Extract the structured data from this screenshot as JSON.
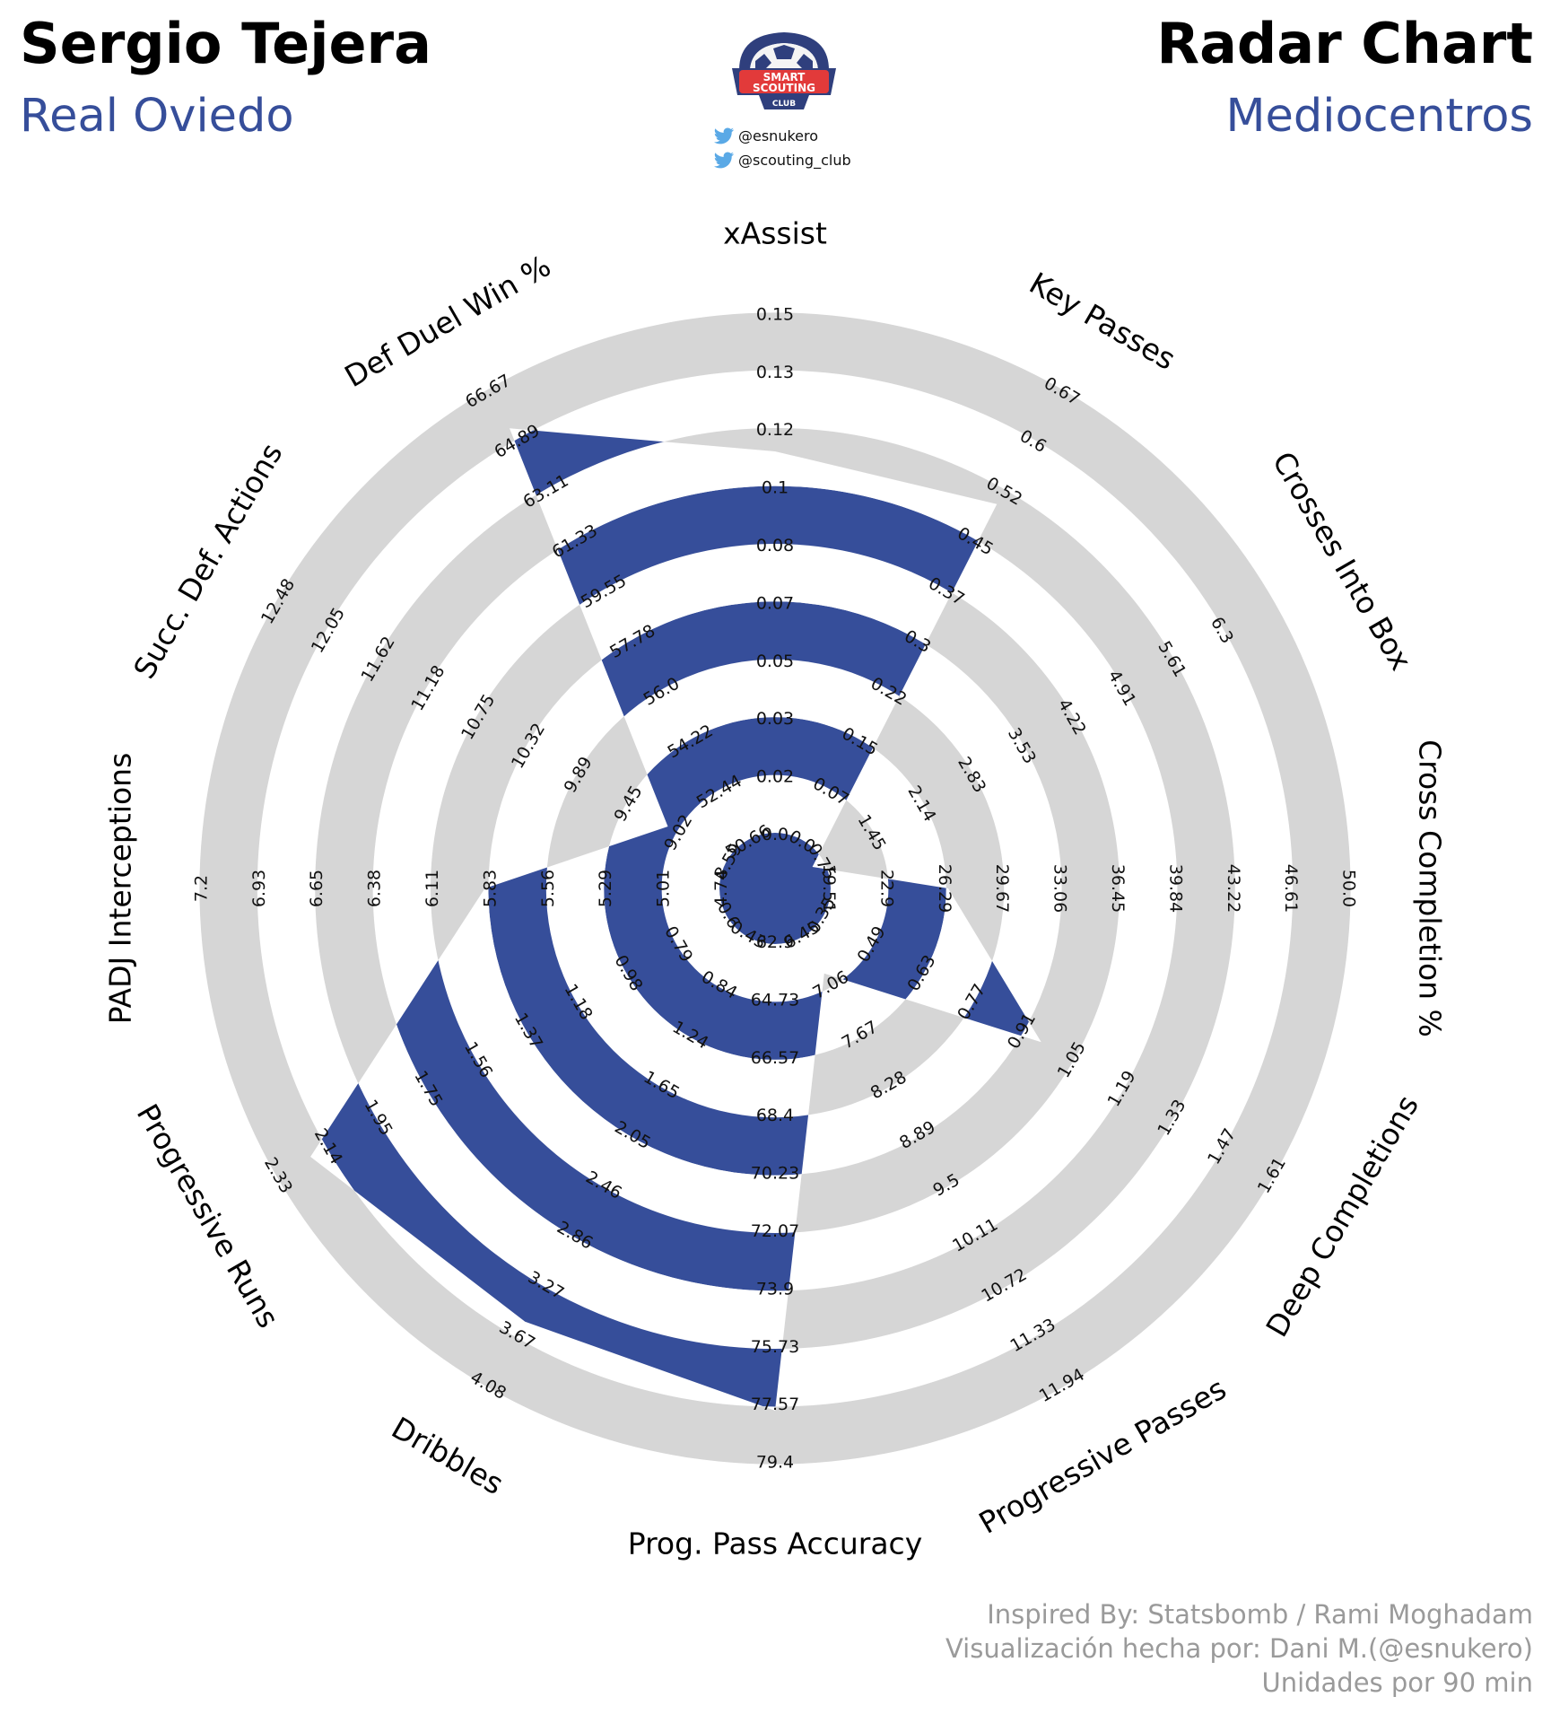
{
  "header": {
    "player": "Sergio Tejera",
    "team": "Real Oviedo",
    "title": "Radar Chart",
    "position": "Mediocentros"
  },
  "logo": {
    "line1": "SMART",
    "line2": "SCOUTING",
    "line3": "CLUB"
  },
  "social": {
    "handle1": "@esnukero",
    "handle2": "@scouting_club",
    "icon": "twitter-bird-icon"
  },
  "footer": {
    "line1": "Inspired By: Statsbomb / Rami Moghadam",
    "line2": "Visualización hecha por: Dani M.(@esnukero)",
    "line3": "Unidades por 90 min"
  },
  "colors": {
    "player_fill": "#364e9a",
    "ring_fill": "#d6d6d6",
    "background": "#ffffff"
  },
  "chart_data": {
    "type": "radar",
    "title": "Radar Chart",
    "series_name": "Sergio Tejera",
    "num_rings": 11,
    "params": [
      {
        "name": "xAssist",
        "ticks": [
          "0.0",
          "0.02",
          "0.03",
          "0.05",
          "0.07",
          "0.08",
          "0.1",
          "0.12",
          "0.13",
          "0.15"
        ],
        "value": 0.11
      },
      {
        "name": "Key Passes",
        "ticks": [
          "0.0",
          "0.07",
          "0.15",
          "0.22",
          "0.3",
          "0.37",
          "0.45",
          "0.52",
          "0.6",
          "0.67"
        ],
        "value": 0.5
      },
      {
        "name": "Crosses Into Box",
        "ticks": [
          "0.75",
          "1.45",
          "2.14",
          "2.83",
          "3.53",
          "4.22",
          "4.91",
          "5.61",
          "6.3"
        ],
        "value": 0.6
      },
      {
        "name": "Cross Completion %",
        "ticks": [
          "19.51",
          "22.9",
          "26.29",
          "29.67",
          "33.06",
          "36.45",
          "39.84",
          "43.22",
          "46.61",
          "50.0"
        ],
        "value": 26.4
      },
      {
        "name": "Deep Completions",
        "ticks": [
          "0.35",
          "0.49",
          "0.63",
          "0.77",
          "0.91",
          "1.05",
          "1.19",
          "1.33",
          "1.47",
          "1.61"
        ],
        "value": 0.96
      },
      {
        "name": "Progressive Passes",
        "ticks": [
          "6.45",
          "7.06",
          "7.67",
          "8.28",
          "8.89",
          "9.5",
          "10.11",
          "10.72",
          "11.33",
          "11.94"
        ],
        "value": 6.9
      },
      {
        "name": "Prog. Pass Accuracy",
        "ticks": [
          "62.9",
          "64.73",
          "66.57",
          "68.4",
          "70.23",
          "72.07",
          "73.9",
          "75.73",
          "77.57",
          "79.4"
        ],
        "value": 77.7
      },
      {
        "name": "Dribbles",
        "ticks": [
          "0.43",
          "0.84",
          "1.24",
          "1.65",
          "2.05",
          "2.46",
          "2.86",
          "3.27",
          "3.67",
          "4.08"
        ],
        "value": 3.55
      },
      {
        "name": "Progressive Runs",
        "ticks": [
          "0.6",
          "0.79",
          "0.98",
          "1.18",
          "1.37",
          "1.56",
          "1.75",
          "1.95",
          "2.14",
          "2.33"
        ],
        "value": 2.2
      },
      {
        "name": "PADJ Interceptions",
        "ticks": [
          "4.74",
          "5.01",
          "5.29",
          "5.56",
          "5.83",
          "6.11",
          "6.38",
          "6.65",
          "6.93",
          "7.2"
        ],
        "value": 5.85
      },
      {
        "name": "Succ. Def. Actions",
        "ticks": [
          "8.59",
          "9.02",
          "9.45",
          "9.89",
          "10.32",
          "10.75",
          "11.18",
          "11.62",
          "12.05",
          "12.48"
        ],
        "value": 9.1
      },
      {
        "name": "Def Duel Win %",
        "ticks": [
          "50.66",
          "52.44",
          "54.22",
          "56.0",
          "57.78",
          "59.55",
          "61.33",
          "63.11",
          "64.89",
          "66.67"
        ],
        "value": 65.3
      }
    ]
  }
}
